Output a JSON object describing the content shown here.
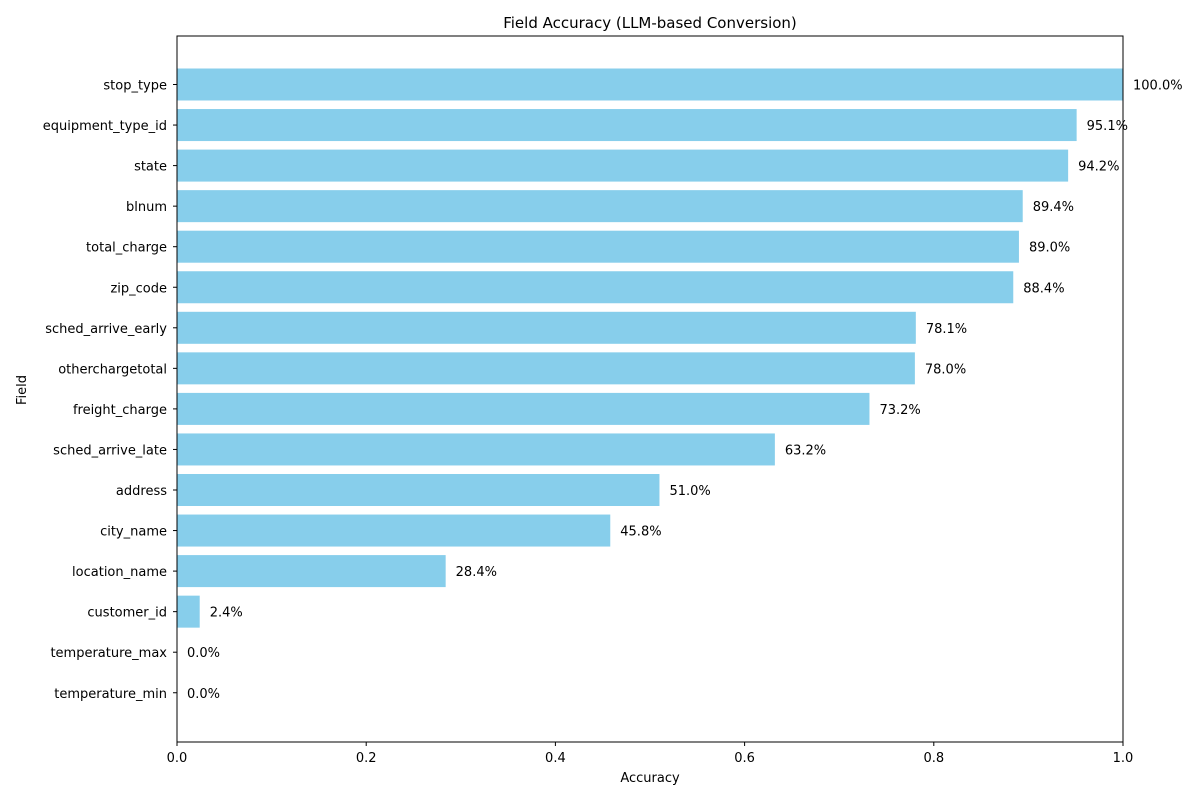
{
  "chart_data": {
    "type": "bar",
    "orientation": "horizontal",
    "title": "Field Accuracy (LLM-based Conversion)",
    "xlabel": "Accuracy",
    "ylabel": "Field",
    "xlim": [
      0.0,
      1.0
    ],
    "x_ticks": [
      0.0,
      0.2,
      0.4,
      0.6,
      0.8,
      1.0
    ],
    "x_tick_labels": [
      "0.0",
      "0.2",
      "0.4",
      "0.6",
      "0.8",
      "1.0"
    ],
    "grid": false,
    "bar_color": "#87CEEB",
    "categories": [
      "stop_type",
      "equipment_type_id",
      "state",
      "blnum",
      "total_charge",
      "zip_code",
      "sched_arrive_early",
      "otherchargetotal",
      "freight_charge",
      "sched_arrive_late",
      "address",
      "city_name",
      "location_name",
      "customer_id",
      "temperature_max",
      "temperature_min"
    ],
    "values": [
      1.0,
      0.951,
      0.942,
      0.894,
      0.89,
      0.884,
      0.781,
      0.78,
      0.732,
      0.632,
      0.51,
      0.458,
      0.284,
      0.024,
      0.0,
      0.0
    ],
    "value_labels": [
      "100.0%",
      "95.1%",
      "94.2%",
      "89.4%",
      "89.0%",
      "88.4%",
      "78.1%",
      "78.0%",
      "73.2%",
      "63.2%",
      "51.0%",
      "45.8%",
      "28.4%",
      "2.4%",
      "0.0%",
      "0.0%"
    ]
  }
}
